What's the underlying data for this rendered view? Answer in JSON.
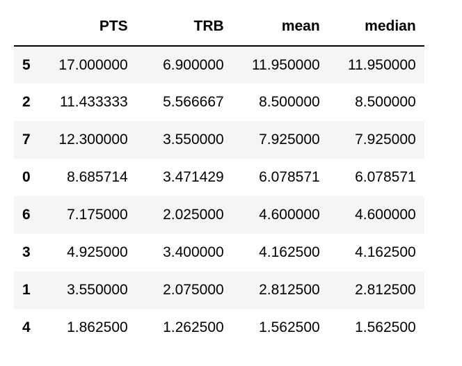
{
  "table": {
    "index_header": "",
    "columns": [
      "PTS",
      "TRB",
      "mean",
      "median"
    ],
    "rows": [
      {
        "index": "5",
        "values": [
          "17.000000",
          "6.900000",
          "11.950000",
          "11.950000"
        ]
      },
      {
        "index": "2",
        "values": [
          "11.433333",
          "5.566667",
          "8.500000",
          "8.500000"
        ]
      },
      {
        "index": "7",
        "values": [
          "12.300000",
          "3.550000",
          "7.925000",
          "7.925000"
        ]
      },
      {
        "index": "0",
        "values": [
          "8.685714",
          "3.471429",
          "6.078571",
          "6.078571"
        ]
      },
      {
        "index": "6",
        "values": [
          "7.175000",
          "2.025000",
          "4.600000",
          "4.600000"
        ]
      },
      {
        "index": "3",
        "values": [
          "4.925000",
          "3.400000",
          "4.162500",
          "4.162500"
        ]
      },
      {
        "index": "1",
        "values": [
          "3.550000",
          "2.075000",
          "2.812500",
          "2.812500"
        ]
      },
      {
        "index": "4",
        "values": [
          "1.862500",
          "1.262500",
          "1.562500",
          "1.562500"
        ]
      }
    ]
  }
}
